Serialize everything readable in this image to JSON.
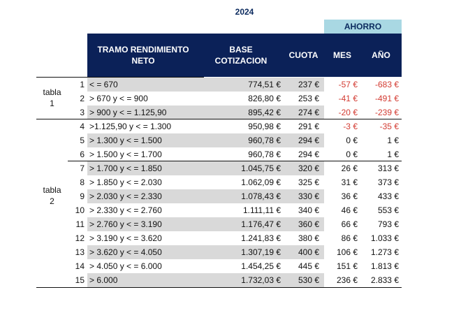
{
  "title": "2024",
  "ahorro_label": "AHORRO",
  "headers": {
    "tramo": "TRAMO RENDIMIENTO NETO",
    "base": "BASE COTIZACION",
    "cuota": "CUOTA",
    "mes": "MES",
    "anio": "AÑO"
  },
  "groups": [
    {
      "label": "tabla 1"
    },
    {
      "label": "tabla 2"
    }
  ],
  "colors": {
    "header": "#0b2158",
    "ahorro": "#a9d8e3",
    "negative": "#d33a31",
    "stripe": "#d9d9d9"
  },
  "rows": [
    {
      "n": "1",
      "tramo": "< = 670",
      "base": "774,51 €",
      "cuota": "237 €",
      "mes": "-57 €",
      "anio": "-683 €"
    },
    {
      "n": "2",
      "tramo": "> 670 y < = 900",
      "base": "826,80 €",
      "cuota": "253 €",
      "mes": "-41 €",
      "anio": "-491 €"
    },
    {
      "n": "3",
      "tramo": "> 900 y < = 1.125,90",
      "base": "895,42 €",
      "cuota": "274 €",
      "mes": "-20 €",
      "anio": "-239 €"
    },
    {
      "n": "4",
      "tramo": ">1.125,90 y < = 1.300",
      "base": "950,98 €",
      "cuota": "291 €",
      "mes": "-3 €",
      "anio": "-35 €"
    },
    {
      "n": "5",
      "tramo": "> 1.300 y < = 1.500",
      "base": "960,78 €",
      "cuota": "294 €",
      "mes": "0 €",
      "anio": "1 €"
    },
    {
      "n": "6",
      "tramo": "> 1.500 y < = 1.700",
      "base": "960,78 €",
      "cuota": "294 €",
      "mes": "0 €",
      "anio": "1 €"
    },
    {
      "n": "7",
      "tramo": "> 1.700 y < = 1.850",
      "base": "1.045,75 €",
      "cuota": "320 €",
      "mes": "26 €",
      "anio": "313 €"
    },
    {
      "n": "8",
      "tramo": "> 1.850 y < = 2.030",
      "base": "1.062,09 €",
      "cuota": "325 €",
      "mes": "31 €",
      "anio": "373 €"
    },
    {
      "n": "9",
      "tramo": "> 2.030 y < = 2.330",
      "base": "1.078,43 €",
      "cuota": "330 €",
      "mes": "36 €",
      "anio": "433 €"
    },
    {
      "n": "10",
      "tramo": "> 2.330 y < = 2.760",
      "base": "1.111,11 €",
      "cuota": "340 €",
      "mes": "46 €",
      "anio": "553 €"
    },
    {
      "n": "11",
      "tramo": "> 2.760 y < = 3.190",
      "base": "1.176,47 €",
      "cuota": "360 €",
      "mes": "66 €",
      "anio": "793 €"
    },
    {
      "n": "12",
      "tramo": "> 3.190 y < = 3.620",
      "base": "1.241,83 €",
      "cuota": "380 €",
      "mes": "86 €",
      "anio": "1.033 €"
    },
    {
      "n": "13",
      "tramo": "> 3.620 y < = 4.050",
      "base": "1.307,19 €",
      "cuota": "400 €",
      "mes": "106 €",
      "anio": "1.273 €"
    },
    {
      "n": "14",
      "tramo": "> 4.050 y  < = 6.000",
      "base": "1.454,25 €",
      "cuota": "445 €",
      "mes": "151 €",
      "anio": "1.813 €"
    },
    {
      "n": "15",
      "tramo": "> 6.000",
      "base": "1.732,03 €",
      "cuota": "530 €",
      "mes": "236 €",
      "anio": "2.833 €"
    }
  ]
}
